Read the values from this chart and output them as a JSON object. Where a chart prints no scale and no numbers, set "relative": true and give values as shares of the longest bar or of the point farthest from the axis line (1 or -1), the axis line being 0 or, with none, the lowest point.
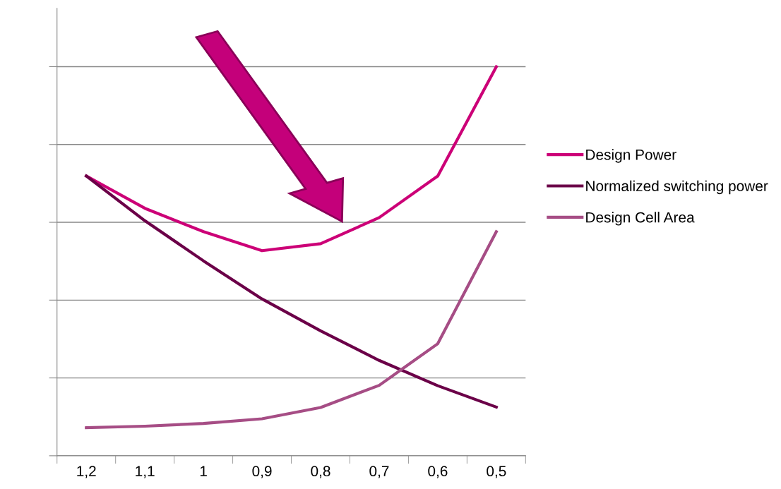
{
  "chart_data": {
    "type": "line",
    "relative": true,
    "grid": "y",
    "legend": "right",
    "categories": [
      "1,2",
      "1,1",
      "1",
      "0,9",
      "0,8",
      "0,7",
      "0,6",
      "0,5"
    ],
    "series": [
      {
        "name": "Design Power",
        "color": "#cc0077",
        "values": [
          0.719,
          0.636,
          0.576,
          0.527,
          0.545,
          0.612,
          0.719,
          1.0
        ]
      },
      {
        "name": "Normalized switching power",
        "color": "#6b0048",
        "values": [
          0.719,
          0.604,
          0.501,
          0.403,
          0.321,
          0.245,
          0.18,
          0.125
        ]
      },
      {
        "name": "Design Cell Area",
        "color": "#a64d85",
        "values": [
          0.072,
          0.076,
          0.083,
          0.095,
          0.124,
          0.181,
          0.288,
          0.576
        ]
      }
    ]
  }
}
